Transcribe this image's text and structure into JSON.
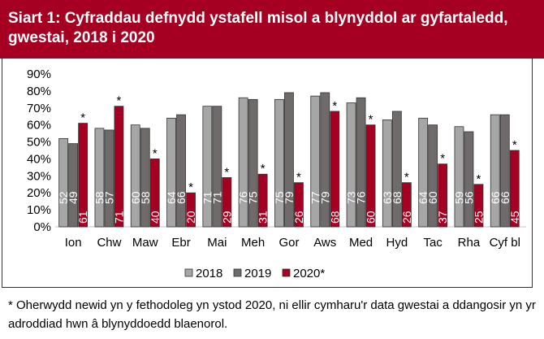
{
  "title": "Siart 1: Cyfraddau defnydd ystafell misol a blynyddol ar gyfartaledd, gwestai, 2018 i 2020",
  "footnote": "* Oherwydd newid yn y fethodoleg yn ystod 2020, ni ellir cymharu'r data gwestai a ddangosir yn yr adroddiad hwn â blynyddoedd blaenorol.",
  "chart_data": {
    "type": "bar",
    "categories": [
      "Ion",
      "Chw",
      "Maw",
      "Ebr",
      "Mai",
      "Meh",
      "Gor",
      "Aws",
      "Med",
      "Hyd",
      "Tac",
      "Rha",
      "Cyf bl"
    ],
    "series": [
      {
        "name": "2018",
        "color": "#a6a6a6",
        "values": [
          52,
          58,
          60,
          64,
          71,
          76,
          75,
          77,
          73,
          63,
          64,
          59,
          66
        ]
      },
      {
        "name": "2019",
        "color": "#6f6b6a",
        "values": [
          49,
          57,
          58,
          66,
          71,
          75,
          79,
          79,
          76,
          68,
          60,
          56,
          66
        ]
      },
      {
        "name": "2020*",
        "color": "#a50021",
        "values": [
          61,
          71,
          40,
          20,
          29,
          31,
          26,
          68,
          60,
          26,
          37,
          25,
          45
        ],
        "annotation": "*"
      }
    ],
    "yticks": [
      "0%",
      "10%",
      "20%",
      "30%",
      "40%",
      "50%",
      "60%",
      "70%",
      "80%",
      "90%"
    ],
    "ylim": [
      0,
      90
    ],
    "grid": false,
    "legend": "bottom"
  }
}
